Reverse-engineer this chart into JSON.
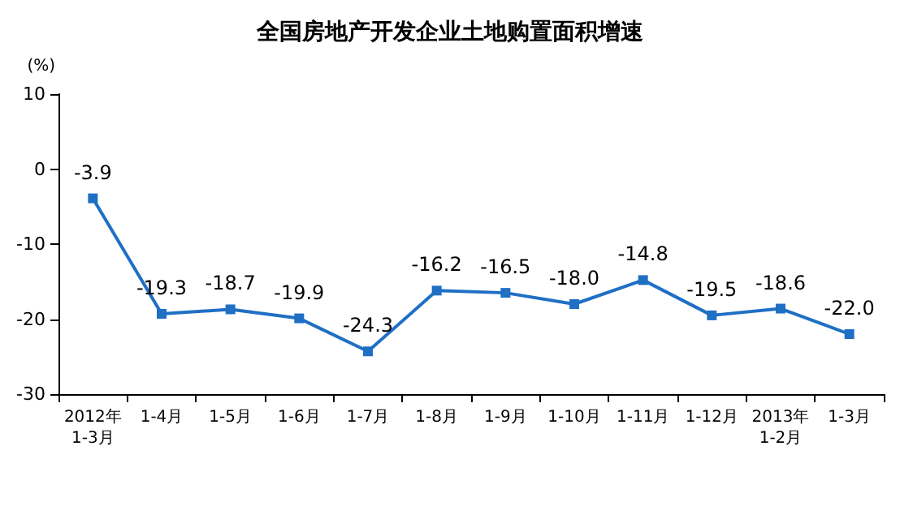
{
  "chart_data": {
    "type": "line",
    "title": "全国房地产开发企业土地购置面积增速",
    "ylabel": "(%)",
    "categories": [
      "2012年\n1-3月",
      "1-4月",
      "1-5月",
      "1-6月",
      "1-7月",
      "1-8月",
      "1-9月",
      "1-10月",
      "1-11月",
      "1-12月",
      "2013年\n1-2月",
      "1-3月"
    ],
    "series": [
      {
        "color": "#1f6fc5",
        "values": [
          -3.9,
          -19.3,
          -18.7,
          -19.9,
          -24.3,
          -16.2,
          -16.5,
          -18.0,
          -14.8,
          -19.5,
          -18.6,
          -22.0
        ],
        "value_labels": [
          "-3.9",
          "-19.3",
          "-18.7",
          "-19.9",
          "-24.3",
          "-16.2",
          "-16.5",
          "-18.0",
          "-14.8",
          "-19.5",
          "-18.6",
          "-22.0"
        ]
      }
    ],
    "ylim": [
      -30,
      10
    ],
    "yticks": [
      -30,
      -20,
      -10,
      0,
      10
    ],
    "marker": "square",
    "line_style": "solid"
  }
}
